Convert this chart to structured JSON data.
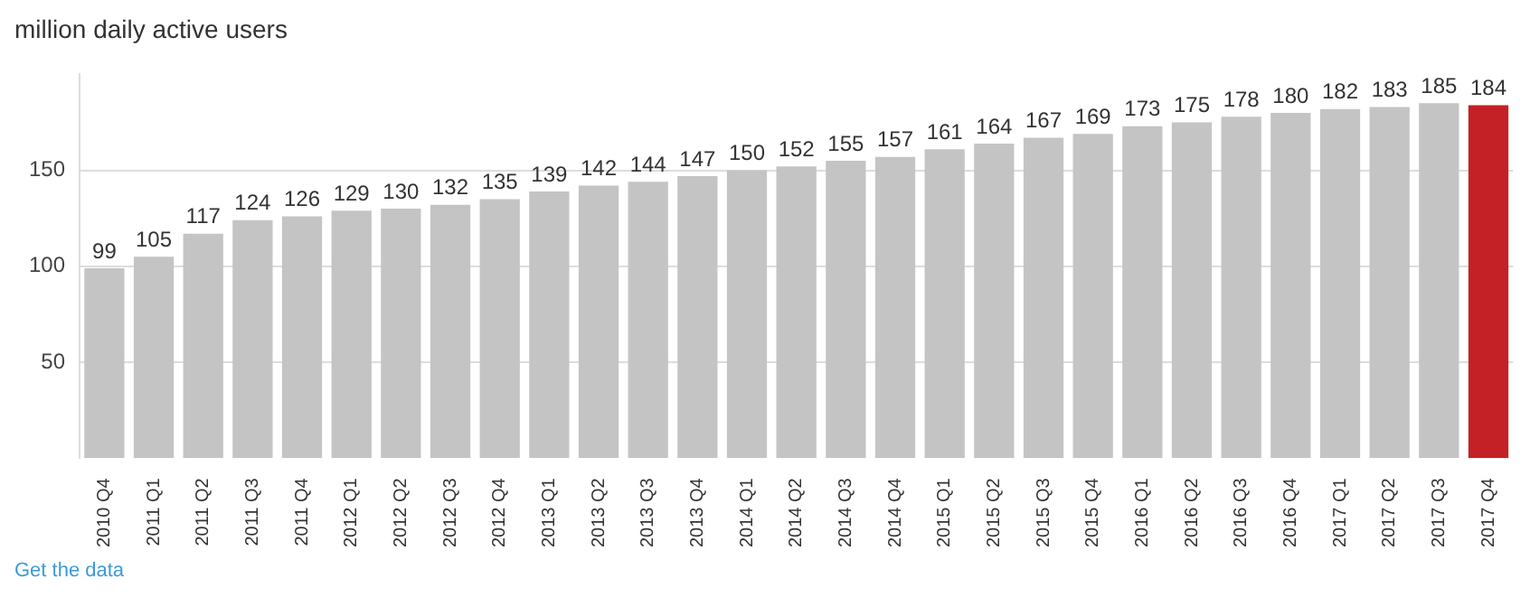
{
  "chart_data": {
    "type": "bar",
    "title": "million daily active users",
    "categories": [
      "2010 Q4",
      "2011 Q1",
      "2011 Q2",
      "2011 Q3",
      "2011 Q4",
      "2012 Q1",
      "2012 Q2",
      "2012 Q3",
      "2012 Q4",
      "2013 Q1",
      "2013 Q2",
      "2013 Q3",
      "2013 Q4",
      "2014 Q1",
      "2014 Q2",
      "2014 Q3",
      "2014 Q4",
      "2015 Q1",
      "2015 Q2",
      "2015 Q3",
      "2015 Q4",
      "2016 Q1",
      "2016 Q2",
      "2016 Q3",
      "2016 Q4",
      "2017 Q1",
      "2017 Q2",
      "2017 Q3",
      "2017 Q4"
    ],
    "values": [
      99,
      105,
      117,
      124,
      126,
      129,
      130,
      132,
      135,
      139,
      142,
      144,
      147,
      150,
      152,
      155,
      157,
      161,
      164,
      167,
      169,
      173,
      175,
      178,
      180,
      182,
      183,
      185,
      184
    ],
    "colors": [
      "#c4c4c4",
      "#c4c4c4",
      "#c4c4c4",
      "#c4c4c4",
      "#c4c4c4",
      "#c4c4c4",
      "#c4c4c4",
      "#c4c4c4",
      "#c4c4c4",
      "#c4c4c4",
      "#c4c4c4",
      "#c4c4c4",
      "#c4c4c4",
      "#c4c4c4",
      "#c4c4c4",
      "#c4c4c4",
      "#c4c4c4",
      "#c4c4c4",
      "#c4c4c4",
      "#c4c4c4",
      "#c4c4c4",
      "#c4c4c4",
      "#c4c4c4",
      "#c4c4c4",
      "#c4c4c4",
      "#c4c4c4",
      "#c4c4c4",
      "#c4c4c4",
      "#c42126"
    ],
    "ylim": [
      0,
      200
    ],
    "yticks": [
      50,
      100,
      150
    ],
    "grid": "y",
    "data_labels": true,
    "legend": false,
    "annotations": [
      "Get the data"
    ]
  }
}
